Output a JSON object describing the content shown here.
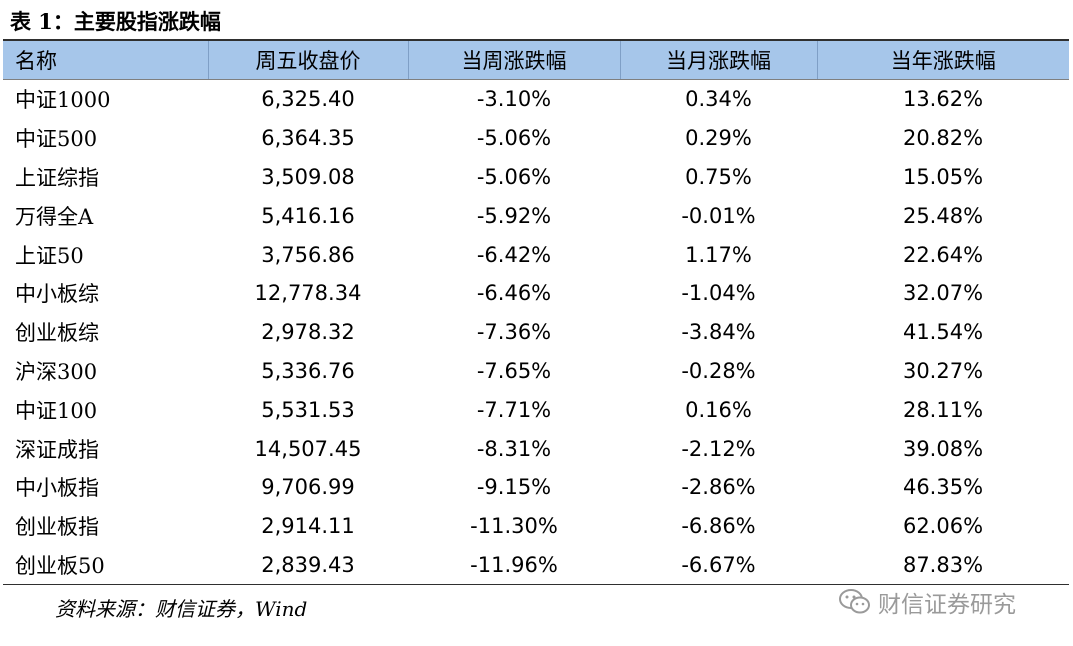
{
  "title": "表 1：主要股指涨跌幅",
  "table": {
    "headers": [
      "名称",
      "周五收盘价",
      "当周涨跌幅",
      "当月涨跌幅",
      "当年涨跌幅"
    ],
    "rows": [
      [
        "中证1000",
        "6,325.40",
        "-3.10%",
        "0.34%",
        "13.62%"
      ],
      [
        "中证500",
        "6,364.35",
        "-5.06%",
        "0.29%",
        "20.82%"
      ],
      [
        "上证综指",
        "3,509.08",
        "-5.06%",
        "0.75%",
        "15.05%"
      ],
      [
        "万得全A",
        "5,416.16",
        "-5.92%",
        "-0.01%",
        "25.48%"
      ],
      [
        "上证50",
        "3,756.86",
        "-6.42%",
        "1.17%",
        "22.64%"
      ],
      [
        "中小板综",
        "12,778.34",
        "-6.46%",
        "-1.04%",
        "32.07%"
      ],
      [
        "创业板综",
        "2,978.32",
        "-7.36%",
        "-3.84%",
        "41.54%"
      ],
      [
        "沪深300",
        "5,336.76",
        "-7.65%",
        "-0.28%",
        "30.27%"
      ],
      [
        "中证100",
        "5,531.53",
        "-7.71%",
        "0.16%",
        "28.11%"
      ],
      [
        "深证成指",
        "14,507.45",
        "-8.31%",
        "-2.12%",
        "39.08%"
      ],
      [
        "中小板指",
        "9,706.99",
        "-9.15%",
        "-2.86%",
        "46.35%"
      ],
      [
        "创业板指",
        "2,914.11",
        "-11.30%",
        "-6.86%",
        "62.06%"
      ],
      [
        "创业板50",
        "2,839.43",
        "-11.96%",
        "-6.67%",
        "87.83%"
      ]
    ]
  },
  "source": "资料来源：财信证券，Wind",
  "watermark": {
    "icon": "wechat-icon",
    "text": "财信证券研究"
  },
  "colors": {
    "header_bg": "#a6c6ea",
    "watermark": "#9a9a9a"
  }
}
